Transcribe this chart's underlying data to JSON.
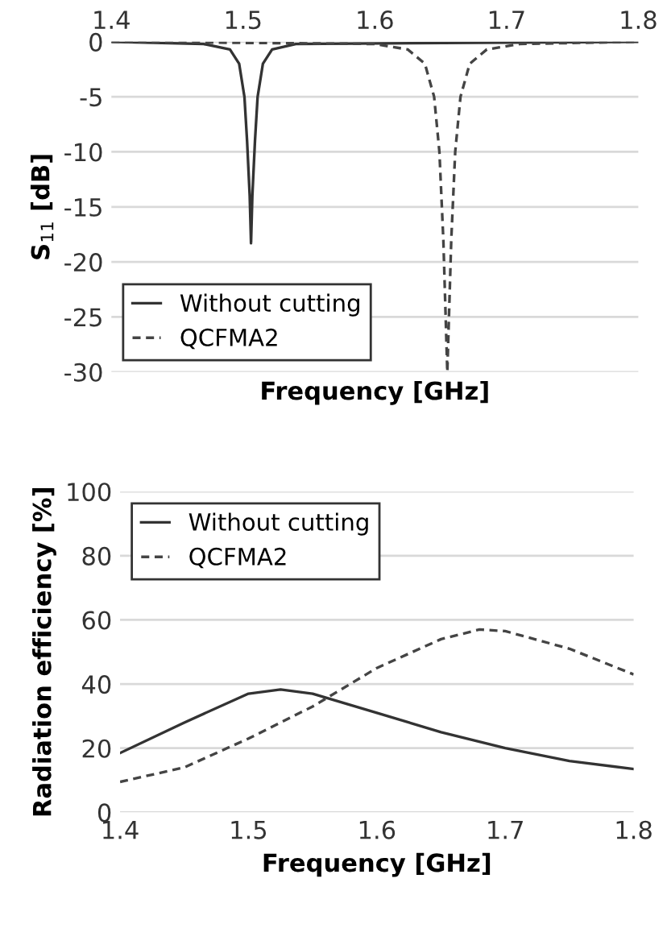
{
  "chart_data": [
    {
      "type": "line",
      "ylabel": "S$_{11}$ [dB]",
      "xlabel": "Frequency [GHz]",
      "xlim": [
        1.4,
        1.8
      ],
      "xticks": [
        1.4,
        1.5,
        1.6,
        1.7,
        1.8
      ],
      "ylim": [
        -30,
        0
      ],
      "yticks": [
        -30,
        -25,
        -20,
        -15,
        -10,
        -5,
        0
      ],
      "grid": "y",
      "legend": "bottom left",
      "series": [
        {
          "name": "Without cutting",
          "color": "#333333",
          "line_style": "solid",
          "x": [
            1.4,
            1.47,
            1.49,
            1.497,
            1.501,
            1.503,
            1.505,
            1.506,
            1.507,
            1.509,
            1.511,
            1.515,
            1.522,
            1.54,
            1.8
          ],
          "values": [
            0,
            -0.2,
            -0.7,
            -2,
            -5,
            -9,
            -14,
            -18.3,
            -14,
            -9,
            -5,
            -2,
            -0.7,
            -0.2,
            0
          ]
        },
        {
          "name": "QCFMA2",
          "color": "#444444",
          "line_style": "dashed",
          "x": [
            1.4,
            1.6,
            1.625,
            1.638,
            1.645,
            1.649,
            1.652,
            1.655,
            1.658,
            1.661,
            1.665,
            1.672,
            1.685,
            1.71,
            1.8
          ],
          "values": [
            0,
            -0.2,
            -0.7,
            -2,
            -5,
            -10,
            -18,
            -30,
            -18,
            -10,
            -5,
            -2,
            -0.7,
            -0.2,
            0
          ]
        }
      ]
    },
    {
      "type": "line",
      "ylabel": "Radiation efficiency [%]",
      "xlabel": "Frequency [GHz]",
      "xlim": [
        1.4,
        1.8
      ],
      "xticks": [
        1.4,
        1.5,
        1.6,
        1.7,
        1.8
      ],
      "ylim": [
        0,
        100
      ],
      "yticks": [
        0,
        20,
        40,
        60,
        80,
        100
      ],
      "grid": "y",
      "legend": "top left",
      "series": [
        {
          "name": "Without cutting",
          "color": "#333333",
          "line_style": "solid",
          "x": [
            1.4,
            1.45,
            1.5,
            1.525,
            1.55,
            1.6,
            1.65,
            1.7,
            1.75,
            1.8
          ],
          "values": [
            18.5,
            28,
            37,
            38.3,
            37,
            31,
            25,
            20,
            16,
            13.5
          ]
        },
        {
          "name": "QCFMA2",
          "color": "#444444",
          "line_style": "dashed",
          "x": [
            1.4,
            1.45,
            1.5,
            1.55,
            1.6,
            1.65,
            1.68,
            1.7,
            1.75,
            1.8
          ],
          "values": [
            9.5,
            14,
            23,
            33,
            45,
            54,
            57,
            56.5,
            51,
            43
          ]
        }
      ]
    }
  ]
}
